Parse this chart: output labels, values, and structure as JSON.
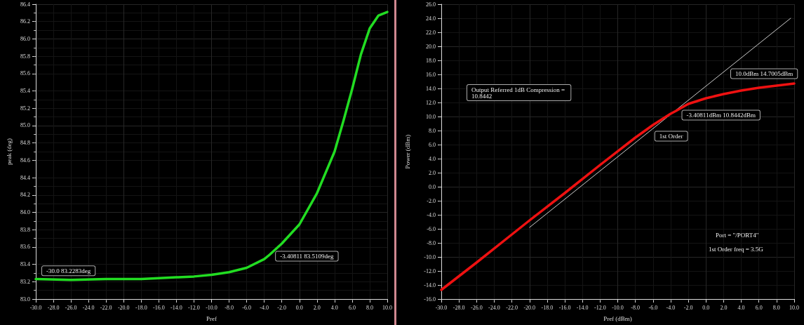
{
  "chart_data": [
    {
      "type": "line",
      "xlabel": "Pref",
      "ylabel": "peak (deg)",
      "grid": true,
      "marker": "none",
      "line_style": "solid",
      "xlim": [
        -30,
        10
      ],
      "ylim": [
        83.0,
        86.4
      ],
      "xticks": [
        {
          "value": -30,
          "label": "-30.0"
        },
        {
          "value": -28,
          "label": "-28.0"
        },
        {
          "value": -26,
          "label": "-26.0"
        },
        {
          "value": -24,
          "label": "-24.0"
        },
        {
          "value": -22,
          "label": "-22.0"
        },
        {
          "value": -20,
          "label": "-20.0"
        },
        {
          "value": -18,
          "label": "-18.0"
        },
        {
          "value": -16,
          "label": "-16.0"
        },
        {
          "value": -14,
          "label": "-14.0"
        },
        {
          "value": -12,
          "label": "-12.0"
        },
        {
          "value": -10,
          "label": "-10.0"
        },
        {
          "value": -8,
          "label": "-8.0"
        },
        {
          "value": -6,
          "label": "-6.0"
        },
        {
          "value": -4,
          "label": "-4.0"
        },
        {
          "value": -2,
          "label": "-2.0"
        },
        {
          "value": 0,
          "label": "0.0"
        },
        {
          "value": 2,
          "label": "2.0"
        },
        {
          "value": 4,
          "label": "4.0"
        },
        {
          "value": 6,
          "label": "6.0"
        },
        {
          "value": 8,
          "label": "8.0"
        },
        {
          "value": 10,
          "label": "10.0"
        }
      ],
      "yticks": [
        {
          "value": 83.0,
          "label": "83.0"
        },
        83.2,
        83.4,
        83.6,
        83.8,
        {
          "value": 84.0,
          "label": "84.0"
        },
        84.2,
        84.4,
        84.6,
        84.8,
        {
          "value": 85.0,
          "label": "85.0"
        },
        85.2,
        85.4,
        85.6,
        85.8,
        {
          "value": 86.0,
          "label": "86.0"
        },
        86.2,
        86.4
      ],
      "series": [
        {
          "color": "#22dd22",
          "x": [
            -30,
            -26,
            -22,
            -18,
            -16,
            -14,
            -12,
            -10,
            -8,
            -6,
            -4,
            -3.4,
            -2,
            0,
            2,
            4,
            5,
            6,
            7,
            8,
            9,
            10
          ],
          "values": [
            83.23,
            83.22,
            83.23,
            83.23,
            83.24,
            83.25,
            83.26,
            83.28,
            83.31,
            83.36,
            83.46,
            83.51,
            83.64,
            83.86,
            84.22,
            84.7,
            85.05,
            85.42,
            85.82,
            86.12,
            86.27,
            86.31
          ]
        }
      ],
      "annotations": [
        {
          "text": "-30.0 83.2283deg",
          "x": -30,
          "y": 83.2283
        },
        {
          "text": "-3.40811 83.5109deg",
          "x": -3.4,
          "y": 83.51
        }
      ]
    },
    {
      "type": "line",
      "xlabel": "Pref (dBm)",
      "ylabel": "Power (dBm)",
      "grid": true,
      "marker": "none",
      "line_style": "solid",
      "xlim": [
        -30,
        10
      ],
      "ylim": [
        -16,
        26
      ],
      "xticks": [
        {
          "value": -30,
          "label": "-30.0"
        },
        {
          "value": -28,
          "label": "-28.0"
        },
        {
          "value": -26,
          "label": "-26.0"
        },
        {
          "value": -24,
          "label": "-24.0"
        },
        {
          "value": -22,
          "label": "-22.0"
        },
        {
          "value": -20,
          "label": "-20.0"
        },
        {
          "value": -18,
          "label": "-18.0"
        },
        {
          "value": -16,
          "label": "-16.0"
        },
        {
          "value": -14,
          "label": "-14.0"
        },
        {
          "value": -12,
          "label": "-12.0"
        },
        {
          "value": -10,
          "label": "-10.0"
        },
        {
          "value": -8,
          "label": "-8.0"
        },
        {
          "value": -6,
          "label": "-6.0"
        },
        {
          "value": -4,
          "label": "-4.0"
        },
        {
          "value": -2,
          "label": "-2.0"
        },
        {
          "value": 0,
          "label": "0.0"
        },
        {
          "value": 2,
          "label": "2.0"
        },
        {
          "value": 4,
          "label": "4.0"
        },
        {
          "value": 6,
          "label": "6.0"
        },
        {
          "value": 8,
          "label": "8.0"
        },
        {
          "value": 10,
          "label": "10.0"
        }
      ],
      "yticks": [
        {
          "value": -16,
          "label": "-16.0"
        },
        {
          "value": -14,
          "label": "-14.0"
        },
        {
          "value": -12,
          "label": "-12.0"
        },
        {
          "value": -10,
          "label": "-10.0"
        },
        {
          "value": -8,
          "label": "-8.0"
        },
        {
          "value": -6,
          "label": "-6.0"
        },
        {
          "value": -4,
          "label": "-4.0"
        },
        {
          "value": -2,
          "label": "-2.0"
        },
        {
          "value": 0,
          "label": "0.0"
        },
        {
          "value": 2,
          "label": "2.0"
        },
        {
          "value": 4,
          "label": "4.0"
        },
        {
          "value": 6,
          "label": "6.0"
        },
        {
          "value": 8,
          "label": "8.0"
        },
        {
          "value": 10,
          "label": "10.0"
        },
        {
          "value": 12,
          "label": "12.0"
        },
        {
          "value": 14,
          "label": "14.0"
        },
        {
          "value": 16,
          "label": "16.0"
        },
        {
          "value": 18,
          "label": "18.0"
        },
        {
          "value": 20,
          "label": "20.0"
        },
        {
          "value": 22,
          "label": "22.0"
        },
        {
          "value": 24,
          "label": "24.0"
        },
        {
          "value": 26,
          "label": "26.0"
        }
      ],
      "series": [
        {
          "color": "#cccccc",
          "x": [
            -20,
            9.6
          ],
          "values": [
            -5.8,
            24
          ]
        },
        {
          "color": "#ee1111",
          "x": [
            -30,
            -26,
            -22,
            -20,
            -16,
            -12,
            -8,
            -6,
            -4,
            -3.4,
            -2,
            0,
            2,
            4,
            6,
            8,
            10
          ],
          "values": [
            -14.7,
            -10.8,
            -6.8,
            -4.8,
            -0.9,
            3.1,
            7.0,
            8.8,
            10.4,
            10.8,
            11.8,
            12.6,
            13.2,
            13.7,
            14.1,
            14.4,
            14.7
          ]
        }
      ],
      "annotations": [
        {
          "text": "10.0dBm 14.7005dBm",
          "x": 10,
          "y": 14.7
        },
        {
          "text": "Output Referred 1dB Compression = \n10.8442"
        },
        {
          "text": "-3.40811dBm 10.8442dBm",
          "x": -3.4,
          "y": 10.8
        },
        {
          "text": "1st Order",
          "x": -6,
          "y": 8.2
        },
        "Port = \"/PORT4\"",
        "1st Order freq = 3.5G"
      ]
    }
  ]
}
